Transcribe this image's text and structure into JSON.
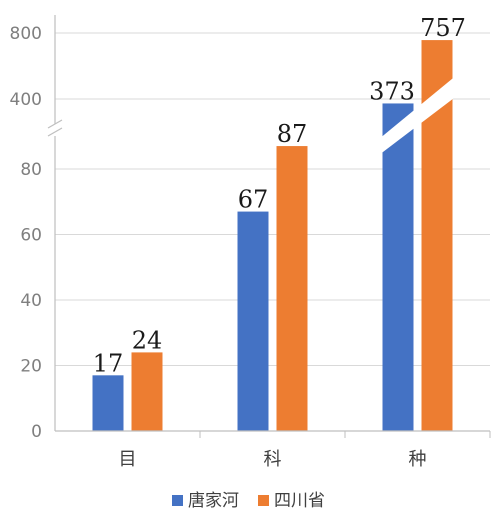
{
  "chart_data": {
    "type": "bar",
    "categories": [
      "目",
      "科",
      "种"
    ],
    "series": [
      {
        "name": "唐家河",
        "values": [
          17,
          67,
          373
        ],
        "color": "#4472C4"
      },
      {
        "name": "四川省",
        "values": [
          24,
          87,
          757
        ],
        "color": "#ED7D31"
      }
    ],
    "y_axis": {
      "broken": true,
      "lower_segment": {
        "range": [
          0,
          90
        ],
        "ticks": [
          0,
          20,
          40,
          60,
          80
        ]
      },
      "upper_segment": {
        "range": [
          300,
          800
        ],
        "ticks": [
          400,
          800
        ]
      }
    },
    "grid": true,
    "legend_position": "bottom",
    "title": "",
    "xlabel": "",
    "ylabel": ""
  }
}
